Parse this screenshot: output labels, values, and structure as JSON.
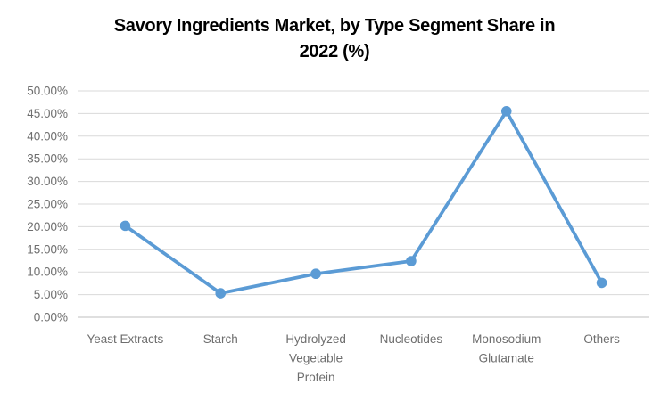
{
  "chart_data": {
    "type": "line",
    "title": "Savory Ingredients Market, by Type Segment Share in 2022 (%)",
    "title_lines": [
      "Savory Ingredients Market, by Type Segment Share in",
      "2022 (%)"
    ],
    "categories": [
      "Yeast Extracts",
      "Starch",
      "Hydrolyzed Vegetable Protein",
      "Nucleotides",
      "Monosodium Glutamate",
      "Others"
    ],
    "values": [
      20.2,
      5.3,
      9.6,
      12.4,
      45.5,
      7.6
    ],
    "ylim": [
      0,
      50
    ],
    "y_tick_step": 5,
    "y_tick_labels": [
      "0.00%",
      "5.00%",
      "10.00%",
      "15.00%",
      "20.00%",
      "25.00%",
      "30.00%",
      "35.00%",
      "40.00%",
      "45.00%",
      "50.00%"
    ],
    "grid": true,
    "legend": "none",
    "colors": {
      "series": "#5B9BD5",
      "gridline": "#D9D9D9",
      "axis_line": "#BFBFBF",
      "tick_label": "#6E6E6E",
      "title": "#000000"
    }
  }
}
